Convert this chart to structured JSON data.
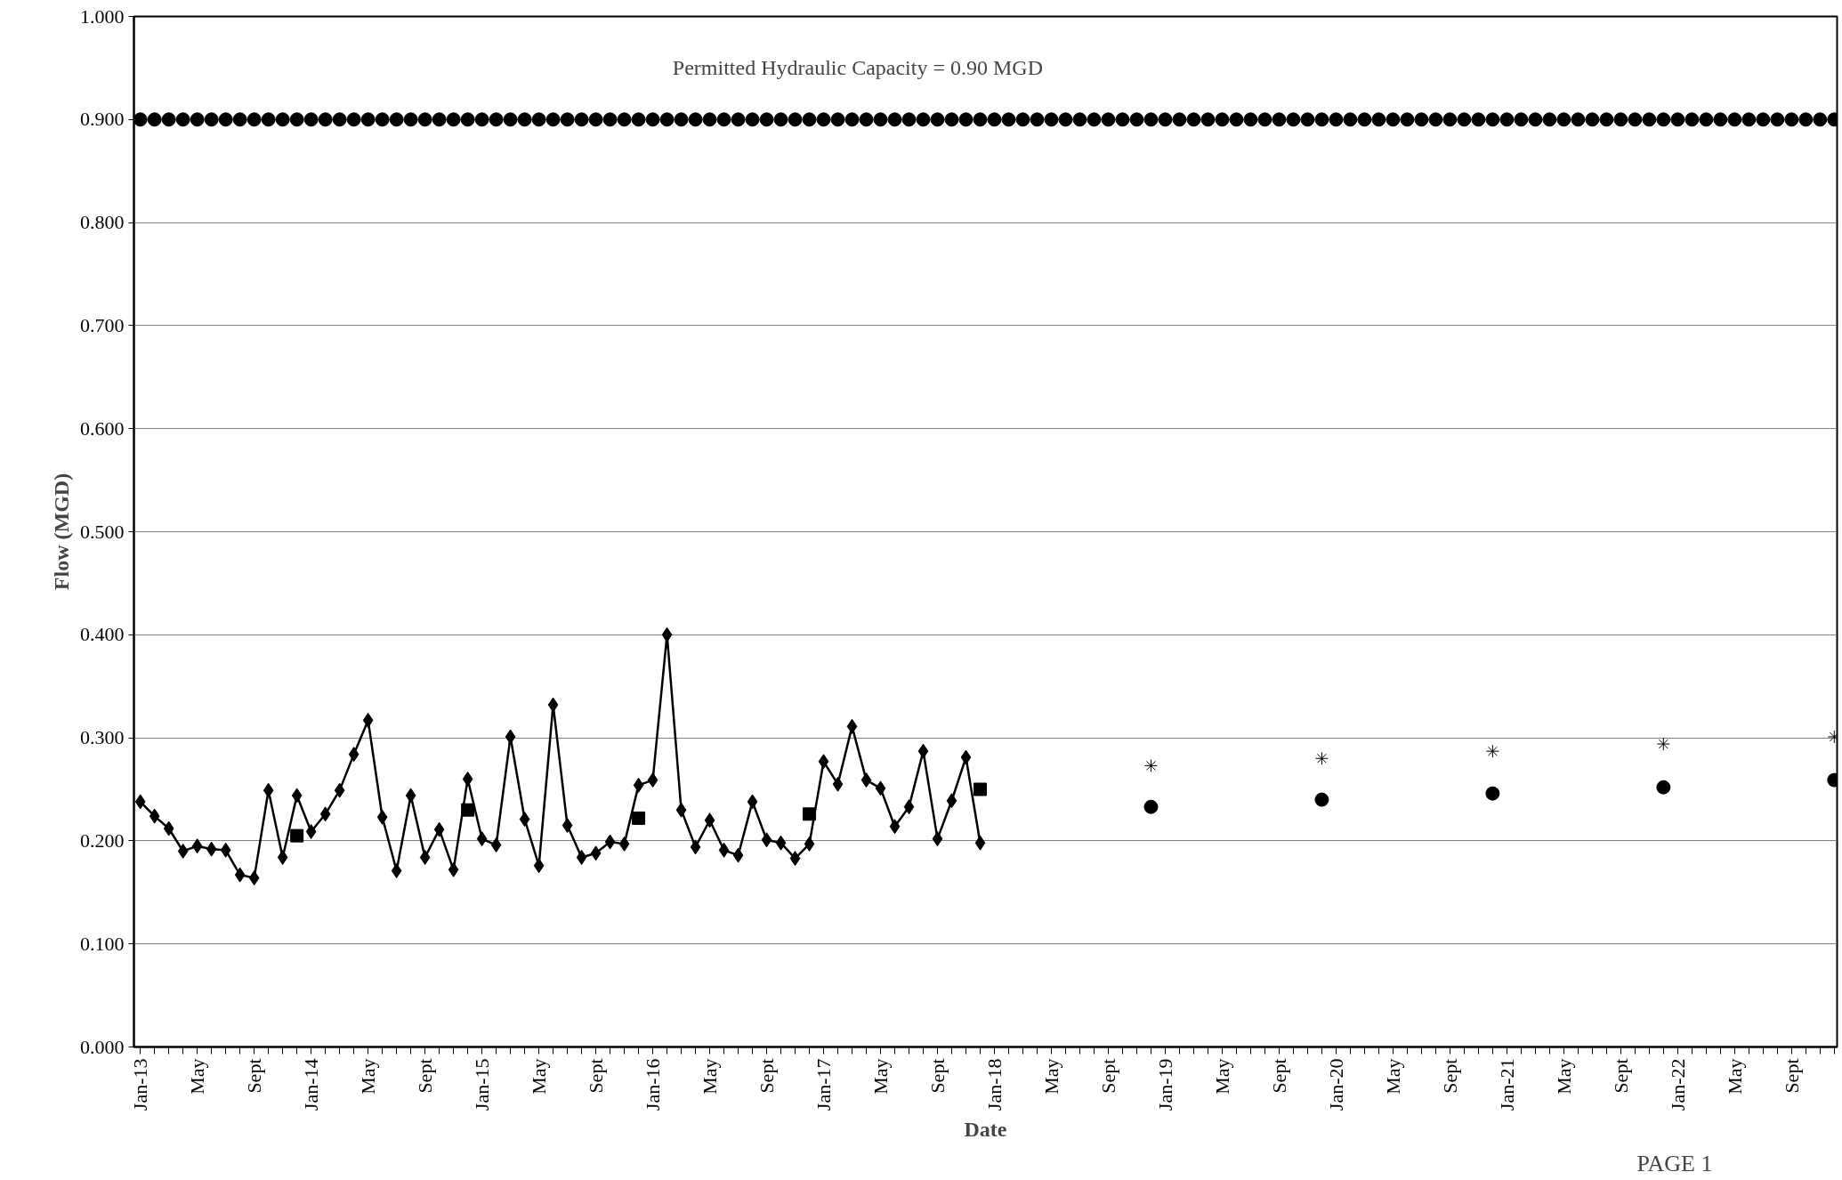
{
  "chart_data": {
    "type": "line",
    "xlabel": "Date",
    "ylabel": "Flow (MGD)",
    "categories": [
      "Jan-13",
      null,
      null,
      null,
      "May",
      null,
      null,
      null,
      "Sept",
      null,
      null,
      null,
      "Jan-14",
      null,
      null,
      null,
      "May",
      null,
      null,
      null,
      "Sept",
      null,
      null,
      null,
      "Jan-15",
      null,
      null,
      null,
      "May",
      null,
      null,
      null,
      "Sept",
      null,
      null,
      null,
      "Jan-16",
      null,
      null,
      null,
      "May",
      null,
      null,
      null,
      "Sept",
      null,
      null,
      null,
      "Jan-17",
      null,
      null,
      null,
      "May",
      null,
      null,
      null,
      "Sept",
      null,
      null,
      null,
      "Jan-18",
      null,
      null,
      null,
      "May",
      null,
      null,
      null,
      "Sept",
      null,
      null,
      null,
      "Jan-19",
      null,
      null,
      null,
      "May",
      null,
      null,
      null,
      "Sept",
      null,
      null,
      null,
      "Jan-20",
      null,
      null,
      null,
      "May",
      null,
      null,
      null,
      "Sept",
      null,
      null,
      null,
      "Jan-21",
      null,
      null,
      null,
      "May",
      null,
      null,
      null,
      "Sept",
      null,
      null,
      null,
      "Jan-22",
      null,
      null,
      null,
      "May",
      null,
      null,
      null,
      "Sept",
      null,
      null,
      null
    ],
    "series": [
      {
        "type": "scatter",
        "marker": "circle",
        "color": "#000000",
        "values": [
          0.9,
          0.9,
          0.9,
          0.9,
          0.9,
          0.9,
          0.9,
          0.9,
          0.9,
          0.9,
          0.9,
          0.9,
          0.9,
          0.9,
          0.9,
          0.9,
          0.9,
          0.9,
          0.9,
          0.9,
          0.9,
          0.9,
          0.9,
          0.9,
          0.9,
          0.9,
          0.9,
          0.9,
          0.9,
          0.9,
          0.9,
          0.9,
          0.9,
          0.9,
          0.9,
          0.9,
          0.9,
          0.9,
          0.9,
          0.9,
          0.9,
          0.9,
          0.9,
          0.9,
          0.9,
          0.9,
          0.9,
          0.9,
          0.9,
          0.9,
          0.9,
          0.9,
          0.9,
          0.9,
          0.9,
          0.9,
          0.9,
          0.9,
          0.9,
          0.9,
          0.9,
          0.9,
          0.9,
          0.9,
          0.9,
          0.9,
          0.9,
          0.9,
          0.9,
          0.9,
          0.9,
          0.9,
          0.9,
          0.9,
          0.9,
          0.9,
          0.9,
          0.9,
          0.9,
          0.9,
          0.9,
          0.9,
          0.9,
          0.9,
          0.9,
          0.9,
          0.9,
          0.9,
          0.9,
          0.9,
          0.9,
          0.9,
          0.9,
          0.9,
          0.9,
          0.9,
          0.9,
          0.9,
          0.9,
          0.9,
          0.9,
          0.9,
          0.9,
          0.9,
          0.9,
          0.9,
          0.9,
          0.9,
          0.9,
          0.9,
          0.9,
          0.9,
          0.9,
          0.9,
          0.9,
          0.9,
          0.9,
          0.9,
          0.9,
          0.9
        ]
      },
      {
        "marker": "diamond",
        "color": "#000000",
        "values": [
          0.238,
          0.224,
          0.212,
          0.19,
          0.195,
          0.192,
          0.191,
          0.167,
          0.164,
          0.249,
          0.184,
          0.244,
          0.209,
          0.226,
          0.249,
          0.284,
          0.317,
          0.223,
          0.171,
          0.244,
          0.184,
          0.211,
          0.172,
          0.26,
          0.202,
          0.196,
          0.301,
          0.221,
          0.176,
          0.332,
          0.215,
          0.184,
          0.188,
          0.199,
          0.197,
          0.254,
          0.259,
          0.4,
          0.23,
          0.194,
          0.22,
          0.191,
          0.186,
          0.238,
          0.201,
          0.198,
          0.183,
          0.197,
          0.277,
          0.255,
          0.311,
          0.259,
          0.251,
          0.214,
          0.233,
          0.287,
          0.202,
          0.239,
          0.281,
          0.198,
          null,
          null,
          null,
          null,
          null,
          null,
          null,
          null,
          null,
          null,
          null,
          null,
          null,
          null,
          null,
          null,
          null,
          null,
          null,
          null,
          null,
          null,
          null,
          null,
          null,
          null,
          null,
          null,
          null,
          null,
          null,
          null,
          null,
          null,
          null,
          null,
          null,
          null,
          null,
          null,
          null,
          null,
          null,
          null,
          null,
          null,
          null,
          null,
          null,
          null,
          null,
          null,
          null,
          null,
          null,
          null,
          null,
          null,
          null,
          null
        ]
      },
      {
        "type": "scatter",
        "marker": "square",
        "color": "#000000",
        "values": [
          null,
          null,
          null,
          null,
          null,
          null,
          null,
          null,
          null,
          null,
          null,
          0.205,
          null,
          null,
          null,
          null,
          null,
          null,
          null,
          null,
          null,
          null,
          null,
          0.23,
          null,
          null,
          null,
          null,
          null,
          null,
          null,
          null,
          null,
          null,
          null,
          0.222,
          null,
          null,
          null,
          null,
          null,
          null,
          null,
          null,
          null,
          null,
          null,
          0.226,
          null,
          null,
          null,
          null,
          null,
          null,
          null,
          null,
          null,
          null,
          null,
          0.25,
          null,
          null,
          null,
          null,
          null,
          null,
          null,
          null,
          null,
          null,
          null,
          null,
          null,
          null,
          null,
          null,
          null,
          null,
          null,
          null,
          null,
          null,
          null,
          null,
          null,
          null,
          null,
          null,
          null,
          null,
          null,
          null,
          null,
          null,
          null,
          null,
          null,
          null,
          null,
          null,
          null,
          null,
          null,
          null,
          null,
          null,
          null,
          null,
          null,
          null,
          null,
          null,
          null,
          null,
          null,
          null,
          null,
          null,
          null,
          null
        ]
      },
      {
        "type": "scatter",
        "marker": "circle",
        "color": "#000000",
        "values": [
          null,
          null,
          null,
          null,
          null,
          null,
          null,
          null,
          null,
          null,
          null,
          null,
          null,
          null,
          null,
          null,
          null,
          null,
          null,
          null,
          null,
          null,
          null,
          null,
          null,
          null,
          null,
          null,
          null,
          null,
          null,
          null,
          null,
          null,
          null,
          null,
          null,
          null,
          null,
          null,
          null,
          null,
          null,
          null,
          null,
          null,
          null,
          null,
          null,
          null,
          null,
          null,
          null,
          null,
          null,
          null,
          null,
          null,
          null,
          null,
          null,
          null,
          null,
          null,
          null,
          null,
          null,
          null,
          null,
          null,
          null,
          0.233,
          null,
          null,
          null,
          null,
          null,
          null,
          null,
          null,
          null,
          null,
          null,
          0.24,
          null,
          null,
          null,
          null,
          null,
          null,
          null,
          null,
          null,
          null,
          null,
          0.246,
          null,
          null,
          null,
          null,
          null,
          null,
          null,
          null,
          null,
          null,
          null,
          0.252,
          null,
          null,
          null,
          null,
          null,
          null,
          null,
          null,
          null,
          null,
          null,
          0.259
        ]
      },
      {
        "type": "scatter",
        "marker": "cross",
        "color": "#000000",
        "values": [
          null,
          null,
          null,
          null,
          null,
          null,
          null,
          null,
          null,
          null,
          null,
          null,
          null,
          null,
          null,
          null,
          null,
          null,
          null,
          null,
          null,
          null,
          null,
          null,
          null,
          null,
          null,
          null,
          null,
          null,
          null,
          null,
          null,
          null,
          null,
          null,
          null,
          null,
          null,
          null,
          null,
          null,
          null,
          null,
          null,
          null,
          null,
          null,
          null,
          null,
          null,
          null,
          null,
          null,
          null,
          null,
          null,
          null,
          null,
          null,
          null,
          null,
          null,
          null,
          null,
          null,
          null,
          null,
          null,
          null,
          null,
          0.273,
          null,
          null,
          null,
          null,
          null,
          null,
          null,
          null,
          null,
          null,
          null,
          0.28,
          null,
          null,
          null,
          null,
          null,
          null,
          null,
          null,
          null,
          null,
          null,
          0.287,
          null,
          null,
          null,
          null,
          null,
          null,
          null,
          null,
          null,
          null,
          null,
          0.294,
          null,
          null,
          null,
          null,
          null,
          null,
          null,
          null,
          null,
          null,
          null,
          0.301
        ]
      }
    ],
    "ylim": [
      0,
      1
    ],
    "yticks": [
      {
        "value": 0,
        "label": "0.000"
      },
      {
        "value": 0.1,
        "label": "0.100"
      },
      {
        "value": 0.2,
        "label": "0.200"
      },
      {
        "value": 0.3,
        "label": "0.300"
      },
      {
        "value": 0.4,
        "label": "0.400"
      },
      {
        "value": 0.5,
        "label": "0.500"
      },
      {
        "value": 0.6,
        "label": "0.600"
      },
      {
        "value": 0.7,
        "label": "0.700"
      },
      {
        "value": 0.8,
        "label": "0.800"
      },
      {
        "value": 0.9,
        "label": "0.900"
      },
      {
        "value": 1,
        "label": "1.000"
      }
    ],
    "grid": "y",
    "annotations": [
      "Permitted Hydraulic Capacity = 0.90 MGD",
      "PAGE 1"
    ]
  }
}
